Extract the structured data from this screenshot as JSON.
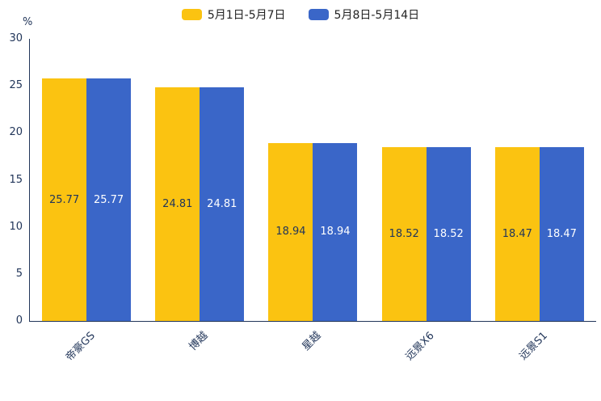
{
  "chart_data": {
    "type": "bar",
    "title": "",
    "xlabel": "",
    "ylabel": "%",
    "ylim": [
      0,
      30
    ],
    "yticks": [
      0,
      5,
      10,
      15,
      20,
      25,
      30
    ],
    "grid": false,
    "legend_position": "top",
    "categories": [
      "帝豪GS",
      "博越",
      "星越",
      "远景X6",
      "远景S1"
    ],
    "series": [
      {
        "name": "5月1日-5月7日",
        "color": "#FBC311",
        "label_color": "#22365A",
        "values": [
          25.77,
          24.81,
          18.94,
          18.52,
          18.47
        ]
      },
      {
        "name": "5月8日-5月14日",
        "color": "#3A66C8",
        "label_color": "#FFFFFF",
        "values": [
          25.77,
          24.81,
          18.94,
          18.52,
          18.47
        ]
      }
    ]
  }
}
